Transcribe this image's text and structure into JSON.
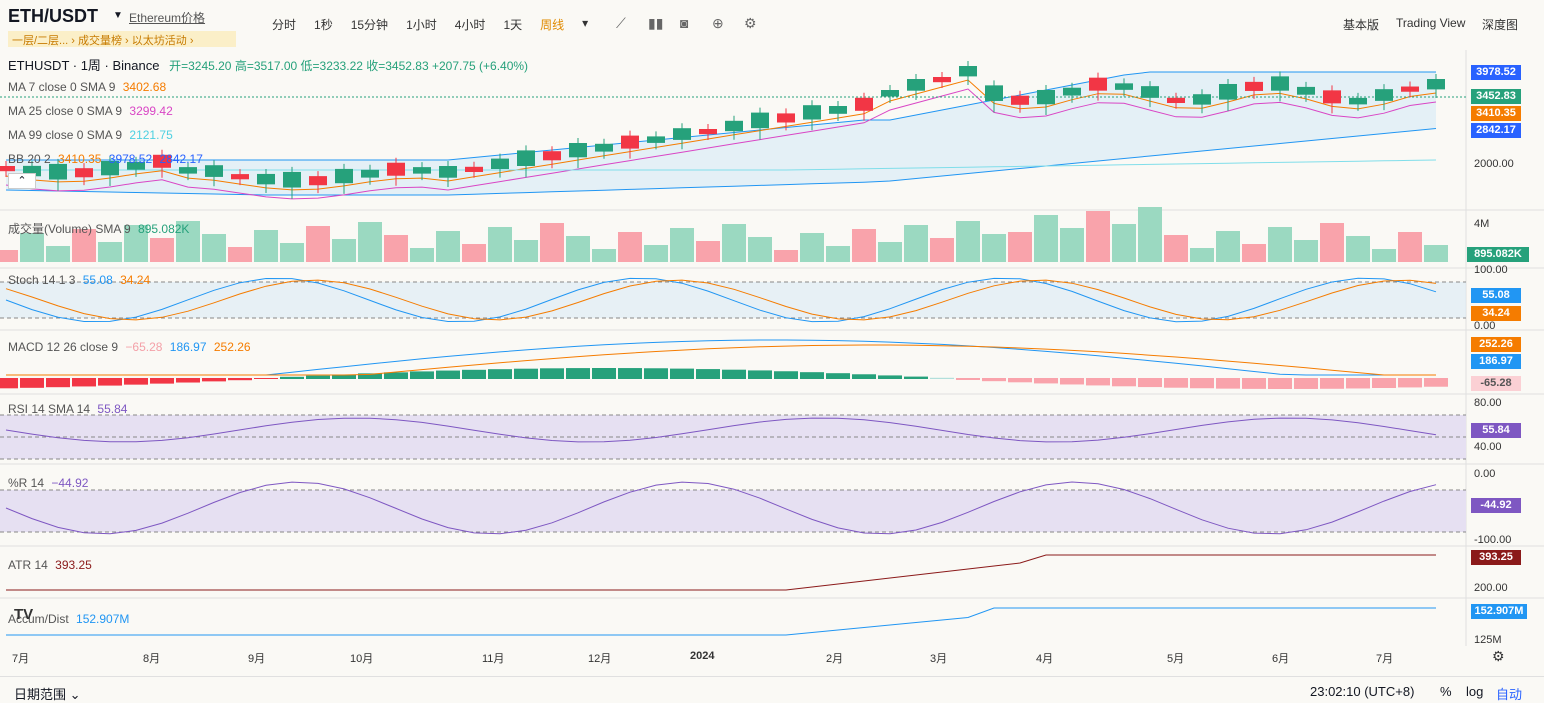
{
  "header": {
    "symbol": "ETH/USDT",
    "link": "Ethereum价格",
    "intervals": [
      "分时",
      "1秒",
      "15分钟",
      "1小时",
      "4小时",
      "1天",
      "周线"
    ],
    "active_interval": "周线",
    "view_options": [
      "基本版",
      "Trading View",
      "深度图"
    ],
    "banner": "一层/二层...  ›   成交量榜  ›  以太坊活动  ›"
  },
  "main": {
    "title": "ETHUSDT · 1周 · Binance",
    "ohlc": "开=3245.20  高=3517.00  低=3233.22  收=3452.83  +207.75 (+6.40%)",
    "ma7": "MA 7 close 0 SMA 9",
    "ma7_val": "3402.68",
    "ma25": "MA 25 close 0 SMA 9",
    "ma25_val": "3299.42",
    "ma99": "MA 99 close 0 SMA 9",
    "ma99_val": "2121.75",
    "bb": "BB 20 2",
    "bb_vals": [
      "3410.35",
      "3978.52",
      "2842.17"
    ],
    "tags": [
      {
        "label": "3978.52",
        "color": "#2962ff"
      },
      {
        "label": "3452.83",
        "color": "#26a17b"
      },
      {
        "label": "3410.35",
        "color": "#f57c00"
      },
      {
        "label": "2842.17",
        "color": "#2962ff"
      }
    ],
    "axis": [
      "2000.00"
    ]
  },
  "volume": {
    "label": "成交量(Volume) SMA 9",
    "value": "895.082K",
    "axis": "4M",
    "tag": "895.082K"
  },
  "stoch": {
    "label": "Stoch 14 1 3",
    "k": "55.08",
    "d": "34.24",
    "axis": [
      "100.00",
      "0.00"
    ]
  },
  "macd": {
    "label": "MACD 12 26 close 9",
    "hist": "−65.28",
    "macd": "186.97",
    "signal": "252.26",
    "tags": [
      "252.26",
      "186.97",
      "-65.28"
    ]
  },
  "rsi": {
    "label": "RSI 14 SMA 14",
    "value": "55.84",
    "axis": [
      "80.00",
      "40.00"
    ]
  },
  "wr": {
    "label": "%R 14",
    "value": "−44.92",
    "tag": "-44.92",
    "axis": [
      "0.00",
      "-100.00"
    ]
  },
  "atr": {
    "label": "ATR 14",
    "value": "393.25",
    "axis": "200.00"
  },
  "accum": {
    "label": "Accum/Dist",
    "value": "152.907M",
    "axis": "125M"
  },
  "xaxis": [
    "7月",
    "8月",
    "9月",
    "10月",
    "11月",
    "12月",
    "2024",
    "2月",
    "3月",
    "4月",
    "5月",
    "6月",
    "7月"
  ],
  "footer": {
    "date_range": "日期范围",
    "time": "23:02:10 (UTC+8)",
    "percent": "%",
    "log": "log",
    "auto": "自动"
  },
  "colors": {
    "up": "#26a17b",
    "down": "#f23645",
    "accent": "#e08a00"
  }
}
